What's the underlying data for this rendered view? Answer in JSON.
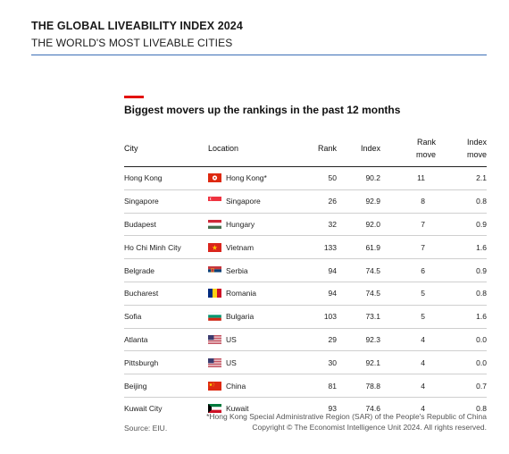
{
  "header": {
    "title": "THE GLOBAL LIVEABILITY INDEX 2024",
    "subtitle": "THE WORLD'S MOST LIVEABLE CITIES"
  },
  "table_title": "Biggest movers up the rankings in the past 12 months",
  "columns": {
    "city": "City",
    "location": "Location",
    "rank": "Rank",
    "index": "Index",
    "rank_move": "Rank move",
    "index_move": "Index move"
  },
  "rows": [
    {
      "city": "Hong Kong",
      "location": "Hong Kong*",
      "flag": "hong-kong-flag-icon",
      "rank": "50",
      "index": "90.2",
      "rank_move": "11",
      "index_move": "2.1"
    },
    {
      "city": "Singapore",
      "location": "Singapore",
      "flag": "singapore-flag-icon",
      "rank": "26",
      "index": "92.9",
      "rank_move": "8",
      "index_move": "0.8"
    },
    {
      "city": "Budapest",
      "location": "Hungary",
      "flag": "hungary-flag-icon",
      "rank": "32",
      "index": "92.0",
      "rank_move": "7",
      "index_move": "0.9"
    },
    {
      "city": "Ho Chi Minh City",
      "location": "Vietnam",
      "flag": "vietnam-flag-icon",
      "rank": "133",
      "index": "61.9",
      "rank_move": "7",
      "index_move": "1.6"
    },
    {
      "city": "Belgrade",
      "location": "Serbia",
      "flag": "serbia-flag-icon",
      "rank": "94",
      "index": "74.5",
      "rank_move": "6",
      "index_move": "0.9"
    },
    {
      "city": "Bucharest",
      "location": "Romania",
      "flag": "romania-flag-icon",
      "rank": "94",
      "index": "74.5",
      "rank_move": "5",
      "index_move": "0.8"
    },
    {
      "city": "Sofia",
      "location": "Bulgaria",
      "flag": "bulgaria-flag-icon",
      "rank": "103",
      "index": "73.1",
      "rank_move": "5",
      "index_move": "1.6"
    },
    {
      "city": "Atlanta",
      "location": "US",
      "flag": "us-flag-icon",
      "rank": "29",
      "index": "92.3",
      "rank_move": "4",
      "index_move": "0.0"
    },
    {
      "city": "Pittsburgh",
      "location": "US",
      "flag": "us-flag-icon",
      "rank": "30",
      "index": "92.1",
      "rank_move": "4",
      "index_move": "0.0"
    },
    {
      "city": "Beijing",
      "location": "China",
      "flag": "china-flag-icon",
      "rank": "81",
      "index": "78.8",
      "rank_move": "4",
      "index_move": "0.7"
    },
    {
      "city": "Kuwait City",
      "location": "Kuwait",
      "flag": "kuwait-flag-icon",
      "rank": "93",
      "index": "74.6",
      "rank_move": "4",
      "index_move": "0.8"
    }
  ],
  "footer": {
    "source": "Source: EIU.",
    "footnote": "*Hong Kong Special Administrative Region (SAR) of the People's Republic of China",
    "copyright": "Copyright © The Economist Intelligence Unit 2024. All rights reserved."
  },
  "colors": {
    "accent_red": "#e3120b",
    "rule_blue": "#3b6fb6"
  }
}
